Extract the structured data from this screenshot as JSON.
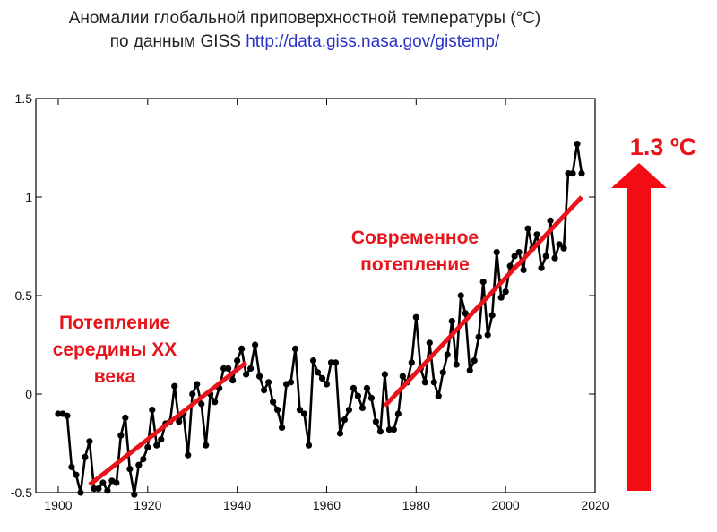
{
  "title": {
    "line1": "Аномалии глобальной приповерхностной температуры (°C)",
    "line2_prefix": "по данным GISS",
    "line2_url": "http://data.giss.nasa.gov/gistemp/"
  },
  "chart_data": {
    "type": "line",
    "xlim": [
      1895,
      2020
    ],
    "ylim": [
      -0.5,
      1.5
    ],
    "x_ticks": [
      1900,
      1920,
      1940,
      1960,
      1980,
      2000,
      2020
    ],
    "y_ticks": [
      -0.5,
      0,
      0.5,
      1,
      1.5
    ],
    "y_tick_labels": [
      "-0.5",
      "0",
      "0.5",
      "1",
      "1.5"
    ],
    "grid": false,
    "x": [
      1900,
      1901,
      1902,
      1903,
      1904,
      1905,
      1906,
      1907,
      1908,
      1909,
      1910,
      1911,
      1912,
      1913,
      1914,
      1915,
      1916,
      1917,
      1918,
      1919,
      1920,
      1921,
      1922,
      1923,
      1924,
      1925,
      1926,
      1927,
      1928,
      1929,
      1930,
      1931,
      1932,
      1933,
      1934,
      1935,
      1936,
      1937,
      1938,
      1939,
      1940,
      1941,
      1942,
      1943,
      1944,
      1945,
      1946,
      1947,
      1948,
      1949,
      1950,
      1951,
      1952,
      1953,
      1954,
      1955,
      1956,
      1957,
      1958,
      1959,
      1960,
      1961,
      1962,
      1963,
      1964,
      1965,
      1966,
      1967,
      1968,
      1969,
      1970,
      1971,
      1972,
      1973,
      1974,
      1975,
      1976,
      1977,
      1978,
      1979,
      1980,
      1981,
      1982,
      1983,
      1984,
      1985,
      1986,
      1987,
      1988,
      1989,
      1990,
      1991,
      1992,
      1993,
      1994,
      1995,
      1996,
      1997,
      1998,
      1999,
      2000,
      2001,
      2002,
      2003,
      2004,
      2005,
      2006,
      2007,
      2008,
      2009,
      2010,
      2011,
      2012,
      2013,
      2014,
      2015,
      2016,
      2017
    ],
    "y": [
      -0.1,
      -0.1,
      -0.11,
      -0.37,
      -0.41,
      -0.5,
      -0.32,
      -0.24,
      -0.48,
      -0.48,
      -0.45,
      -0.49,
      -0.44,
      -0.45,
      -0.21,
      -0.12,
      -0.38,
      -0.51,
      -0.36,
      -0.33,
      -0.27,
      -0.08,
      -0.26,
      -0.23,
      -0.15,
      -0.14,
      0.04,
      -0.14,
      -0.1,
      -0.31,
      0.0,
      0.05,
      -0.05,
      -0.26,
      0.0,
      -0.04,
      0.03,
      0.13,
      0.13,
      0.07,
      0.17,
      0.23,
      0.1,
      0.13,
      0.25,
      0.09,
      0.02,
      0.06,
      -0.04,
      -0.08,
      -0.17,
      0.05,
      0.06,
      0.23,
      -0.08,
      -0.1,
      -0.26,
      0.17,
      0.11,
      0.08,
      0.05,
      0.16,
      0.16,
      -0.2,
      -0.13,
      -0.08,
      0.03,
      -0.01,
      -0.07,
      0.03,
      -0.02,
      -0.14,
      -0.19,
      0.1,
      -0.18,
      -0.18,
      -0.1,
      0.09,
      0.06,
      0.16,
      0.39,
      0.13,
      0.06,
      0.26,
      0.06,
      -0.01,
      0.11,
      0.2,
      0.37,
      0.15,
      0.5,
      0.41,
      0.12,
      0.17,
      0.29,
      0.57,
      0.3,
      0.4,
      0.72,
      0.49,
      0.52,
      0.65,
      0.7,
      0.72,
      0.63,
      0.84,
      0.74,
      0.81,
      0.64,
      0.7,
      0.88,
      0.69,
      0.76,
      0.74,
      1.12,
      1.12,
      1.27,
      1.12
    ]
  },
  "annotations": {
    "mid_century": {
      "lines": [
        "Потепление",
        "середины XX",
        "века"
      ],
      "trend": {
        "x": [
          1907,
          1942
        ],
        "y": [
          -0.46,
          0.16
        ]
      }
    },
    "modern": {
      "lines": [
        "Современное",
        "потепление"
      ],
      "trend": {
        "x": [
          1973,
          2017
        ],
        "y": [
          -0.06,
          1.0
        ]
      }
    },
    "total_rise": {
      "label": "1.3 ºC"
    }
  },
  "colors": {
    "series": "#000000",
    "annotation": "#e8141b",
    "url": "#2a33c8"
  }
}
